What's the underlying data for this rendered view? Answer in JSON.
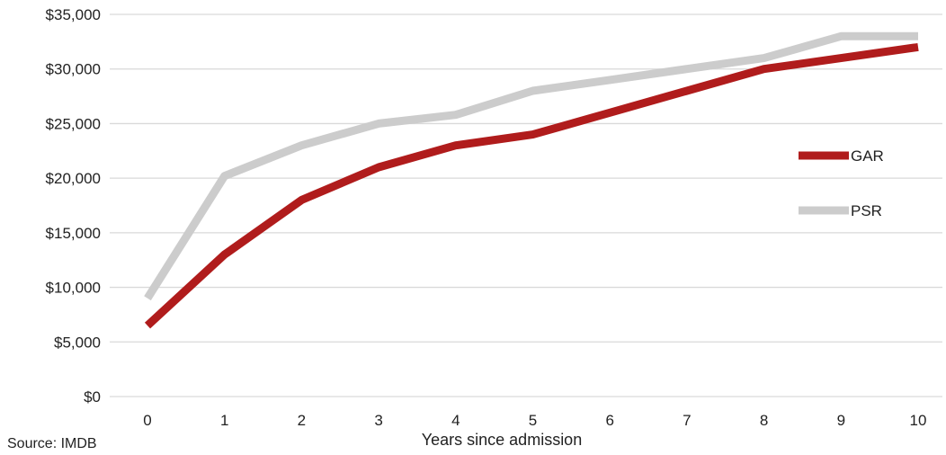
{
  "chart_data": {
    "type": "line",
    "title": "",
    "xlabel": "Years since admission",
    "ylabel": "",
    "x": [
      0,
      1,
      2,
      3,
      4,
      5,
      6,
      7,
      8,
      9,
      10
    ],
    "x_tick_labels": [
      "0",
      "1",
      "2",
      "3",
      "4",
      "5",
      "6",
      "7",
      "8",
      "9",
      "10"
    ],
    "ylim": [
      0,
      35000
    ],
    "y_ticks": [
      0,
      5000,
      10000,
      15000,
      20000,
      25000,
      30000,
      35000
    ],
    "y_tick_labels": [
      "$0",
      "$5,000",
      "$10,000",
      "$15,000",
      "$20,000",
      "$25,000",
      "$30,000",
      "$35,000"
    ],
    "grid": "horizontal",
    "legend_position": "right",
    "series": [
      {
        "name": "GAR",
        "color": "#b01c1c",
        "values": [
          6500,
          13000,
          18000,
          21000,
          23000,
          24000,
          26000,
          28000,
          30000,
          31000,
          32000
        ]
      },
      {
        "name": "PSR",
        "color": "#cccccc",
        "values": [
          9000,
          20200,
          23000,
          25000,
          25800,
          28000,
          29000,
          30000,
          31000,
          33000,
          33000
        ]
      }
    ],
    "source": "Source: IMDB"
  }
}
